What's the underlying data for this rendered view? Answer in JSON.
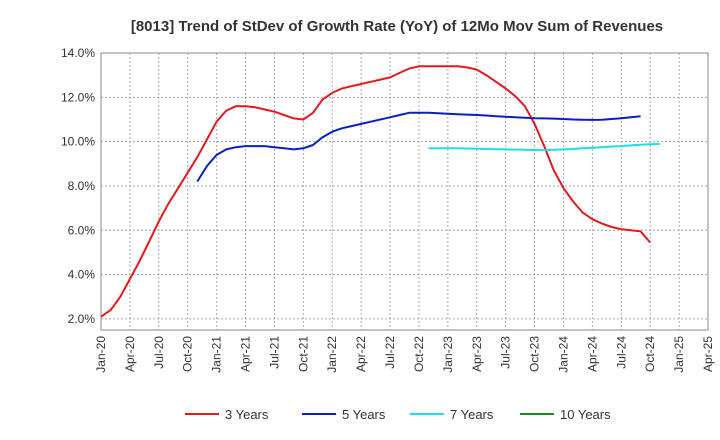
{
  "chart_data": {
    "type": "line",
    "title": "[8013]  Trend of StDev of Growth Rate (YoY) of 12Mo Mov Sum of Revenues",
    "xlabel": "",
    "ylabel": "",
    "ylim": [
      1.5,
      14.0
    ],
    "x_ticks": [
      "Jan-20",
      "Apr-20",
      "Jul-20",
      "Oct-20",
      "Jan-21",
      "Apr-21",
      "Jul-21",
      "Oct-21",
      "Jan-22",
      "Apr-22",
      "Jul-22",
      "Oct-22",
      "Jan-23",
      "Apr-23",
      "Jul-23",
      "Oct-23",
      "Jan-24",
      "Apr-24",
      "Jul-24",
      "Oct-24",
      "Jan-25",
      "Apr-25"
    ],
    "y_ticks": [
      {
        "value": 2,
        "label": "2.0%"
      },
      {
        "value": 4,
        "label": "4.0%"
      },
      {
        "value": 6,
        "label": "6.0%"
      },
      {
        "value": 8,
        "label": "8.0%"
      },
      {
        "value": 10,
        "label": "10.0%"
      },
      {
        "value": 12,
        "label": "12.0%"
      },
      {
        "value": 14,
        "label": "14.0%"
      }
    ],
    "x_start": "Jan-20",
    "x_end": "Apr-25",
    "grid": true,
    "legend_position": "bottom",
    "series": [
      {
        "name": "3 Years",
        "color": "#e31a1c",
        "start_month_index": 0,
        "values": [
          2.1,
          2.4,
          3.0,
          3.8,
          4.6,
          5.5,
          6.4,
          7.2,
          7.9,
          8.6,
          9.3,
          10.1,
          10.9,
          11.4,
          11.6,
          11.6,
          11.55,
          11.45,
          11.35,
          11.2,
          11.05,
          11.0,
          11.3,
          11.9,
          12.2,
          12.4,
          12.5,
          12.6,
          12.7,
          12.8,
          12.9,
          13.1,
          13.3,
          13.4,
          13.4,
          13.4,
          13.4,
          13.4,
          13.35,
          13.25,
          13.0,
          12.7,
          12.4,
          12.05,
          11.6,
          10.8,
          9.8,
          8.7,
          7.9,
          7.3,
          6.8,
          6.5,
          6.3,
          6.15,
          6.05,
          6.0,
          5.95,
          5.45
        ]
      },
      {
        "name": "5 Years",
        "color": "#0a1fbf",
        "start_month_index": 10,
        "values": [
          8.2,
          8.9,
          9.4,
          9.65,
          9.75,
          9.8,
          9.8,
          9.8,
          9.75,
          9.7,
          9.65,
          9.7,
          9.85,
          10.2,
          10.45,
          10.6,
          10.7,
          10.8,
          10.9,
          11.0,
          11.1,
          11.2,
          11.3,
          11.3,
          11.3,
          11.28,
          11.26,
          11.24,
          11.22,
          11.2,
          11.18,
          11.15,
          11.12,
          11.1,
          11.08,
          11.06,
          11.05,
          11.04,
          11.02,
          11.0,
          10.99,
          10.98,
          10.99,
          11.02,
          11.06,
          11.1,
          11.15
        ]
      },
      {
        "name": "7 Years",
        "color": "#19e0e8",
        "start_month_index": 34,
        "values": [
          9.7,
          9.7,
          9.7,
          9.7,
          9.69,
          9.68,
          9.67,
          9.66,
          9.65,
          9.64,
          9.63,
          9.62,
          9.62,
          9.63,
          9.65,
          9.67,
          9.7,
          9.72,
          9.75,
          9.78,
          9.8,
          9.83,
          9.86,
          9.88,
          9.9
        ]
      },
      {
        "name": "10 Years",
        "color": "#1a8c1a",
        "start_month_index": 0,
        "values": []
      }
    ]
  }
}
